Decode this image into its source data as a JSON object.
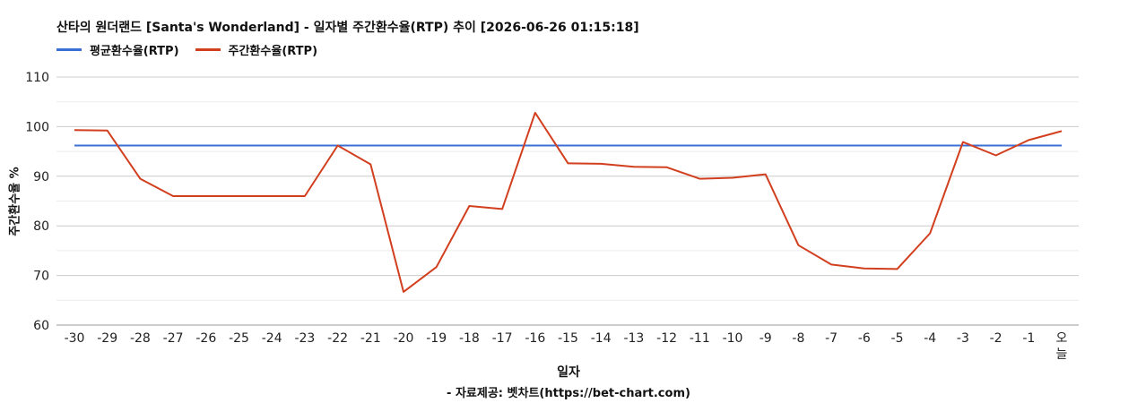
{
  "chart_data": {
    "type": "line",
    "title": "산타의 원더랜드 [Santa's Wonderland] - 일자별 주간환수율(RTP) 추이 [2026-06-26 01:15:18]",
    "xlabel": "일자",
    "ylabel": "주간환수율 %",
    "source": "- 자료제공: 벳차트(https://bet-chart.com)",
    "ylim": [
      60,
      110
    ],
    "yticks": [
      60,
      70,
      80,
      90,
      100,
      110
    ],
    "grid": true,
    "legend_position": "top-left",
    "categories": [
      "-30",
      "-29",
      "-28",
      "-27",
      "-26",
      "-25",
      "-24",
      "-23",
      "-22",
      "-21",
      "-20",
      "-19",
      "-18",
      "-17",
      "-16",
      "-15",
      "-14",
      "-13",
      "-12",
      "-11",
      "-10",
      "-9",
      "-8",
      "-7",
      "-6",
      "-5",
      "-4",
      "-3",
      "-2",
      "-1",
      "오늘"
    ],
    "series": [
      {
        "name": "평균환수율(RTP)",
        "color": "#3b6fd6",
        "values": [
          96.2,
          96.2,
          96.2,
          96.2,
          96.2,
          96.2,
          96.2,
          96.2,
          96.2,
          96.2,
          96.2,
          96.2,
          96.2,
          96.2,
          96.2,
          96.2,
          96.2,
          96.2,
          96.2,
          96.2,
          96.2,
          96.2,
          96.2,
          96.2,
          96.2,
          96.2,
          96.2,
          96.2,
          96.2,
          96.2,
          96.2
        ]
      },
      {
        "name": "주간환수율(RTP)",
        "color": "#d23f1f",
        "values": [
          99.3,
          99.2,
          89.5,
          86.0,
          86.0,
          86.0,
          86.0,
          86.0,
          96.2,
          92.4,
          66.7,
          71.7,
          84.0,
          83.4,
          102.8,
          92.6,
          92.5,
          91.9,
          91.8,
          89.5,
          89.7,
          90.4,
          76.1,
          72.2,
          71.4,
          71.3,
          78.5,
          96.9,
          94.2,
          97.3,
          99.1
        ]
      }
    ]
  }
}
